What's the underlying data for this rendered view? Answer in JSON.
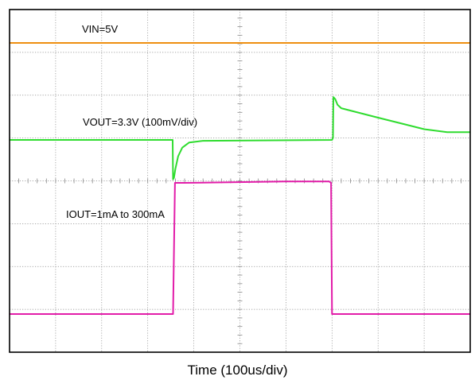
{
  "chart_data": {
    "type": "line",
    "xlabel": "Time (100us/div)",
    "x_divisions": 10,
    "y_divisions": 8,
    "grid": true,
    "colors": {
      "vin": "#ee8f10",
      "vout": "#2fdc2f",
      "iout": "#e21ca9",
      "grid": "#8a8a8a",
      "frame": "#000000"
    },
    "series": [
      {
        "name": "VIN=5V",
        "unit_note": "",
        "points": [
          [
            0,
            5.0
          ],
          [
            1000,
            5.0
          ]
        ]
      },
      {
        "name": "VOUT=3.3V (100mV/div)",
        "points": [
          [
            0,
            3.3
          ],
          [
            354,
            3.3
          ],
          [
            355,
            3.208
          ],
          [
            357,
            3.212
          ],
          [
            360,
            3.232
          ],
          [
            366,
            3.262
          ],
          [
            375,
            3.282
          ],
          [
            390,
            3.294
          ],
          [
            420,
            3.298
          ],
          [
            700,
            3.3
          ],
          [
            702,
            3.305
          ],
          [
            703,
            3.4
          ],
          [
            707,
            3.395
          ],
          [
            712,
            3.382
          ],
          [
            720,
            3.374
          ],
          [
            800,
            3.352
          ],
          [
            900,
            3.325
          ],
          [
            950,
            3.318
          ],
          [
            1000,
            3.318
          ]
        ]
      },
      {
        "name": "IOUT=1mA to 300mA",
        "points": [
          [
            0,
            1
          ],
          [
            355,
            1
          ],
          [
            359,
            300
          ],
          [
            380,
            300
          ],
          [
            600,
            303
          ],
          [
            694,
            303
          ],
          [
            698,
            300
          ],
          [
            700,
            1
          ],
          [
            1000,
            1
          ]
        ]
      }
    ]
  }
}
